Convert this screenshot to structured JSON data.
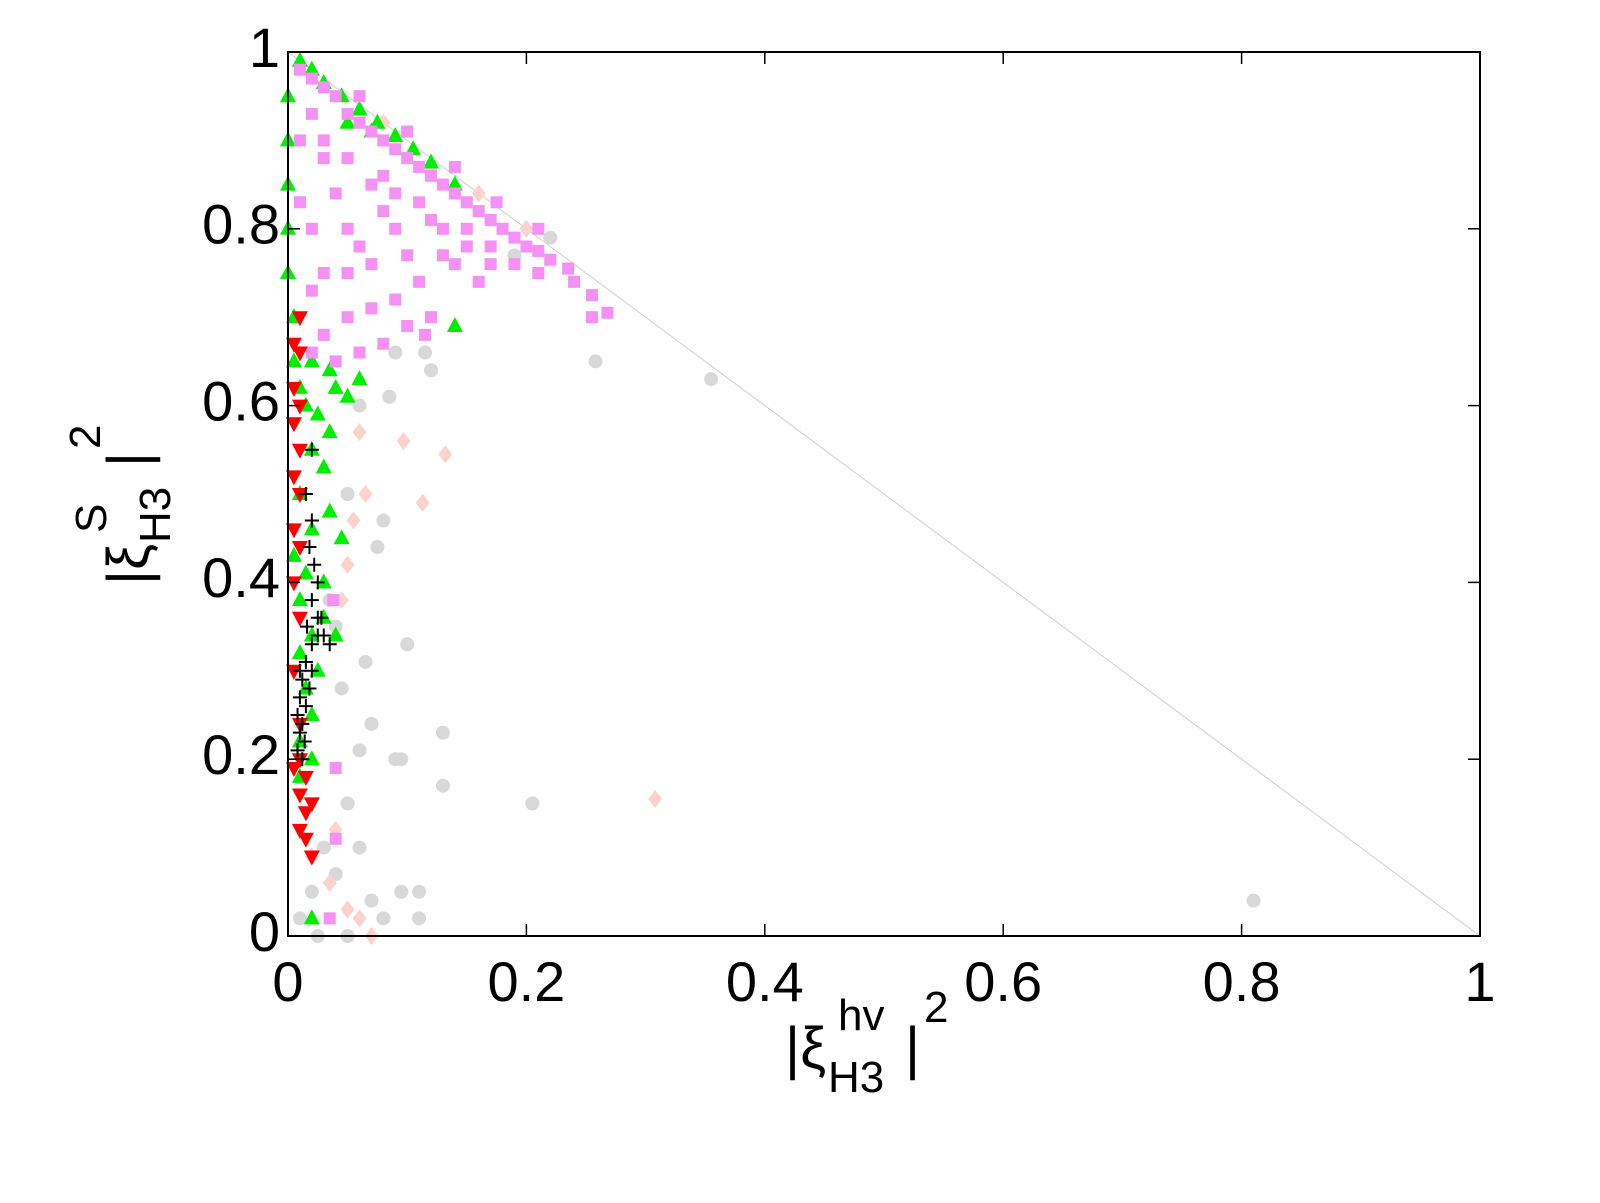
{
  "chart_data": {
    "type": "scatter",
    "xlabel": {
      "open": "|ξ",
      "sup": "hv",
      "sub": "H3",
      "close": "|",
      "power": "2"
    },
    "ylabel": {
      "open": "|ξ",
      "sup": "S",
      "sub": "H3",
      "close": "|",
      "power": "2"
    },
    "xlim": [
      0,
      1
    ],
    "ylim": [
      0,
      1
    ],
    "xticks": [
      0,
      0.2,
      0.4,
      0.6,
      0.8,
      1
    ],
    "yticks": [
      0,
      0.2,
      0.4,
      0.6,
      0.8,
      1
    ],
    "grid": false,
    "series": [
      {
        "color": "#d8d8d8",
        "marker": "circle",
        "x": [
          0.81,
          0.355,
          0.258,
          0.205,
          0.13,
          0.13,
          0.1,
          0.065,
          0.09,
          0.095,
          0.11,
          0.11,
          0.08,
          0.07,
          0.06,
          0.07,
          0.095,
          0.08,
          0.075,
          0.05,
          0.06,
          0.085,
          0.12,
          0.115,
          0.03,
          0.02,
          0.01,
          0.04,
          0.05,
          0.045,
          0.035,
          0.025,
          0.05,
          0.22,
          0.19,
          0.09,
          0.04,
          0.06
        ],
        "values": [
          0.04,
          0.63,
          0.65,
          0.15,
          0.23,
          0.17,
          0.33,
          0.31,
          0.2,
          0.05,
          0.05,
          0.02,
          0.02,
          0.04,
          0.21,
          0.24,
          0.2,
          0.47,
          0.44,
          0.5,
          0.6,
          0.61,
          0.64,
          0.66,
          0.1,
          0.05,
          0.02,
          0.07,
          0.15,
          0.28,
          0.38,
          0.0,
          0.0,
          0.79,
          0.77,
          0.66,
          0.35,
          0.1
        ]
      },
      {
        "color": "#fcd2cc",
        "marker": "diamond",
        "x": [
          0.308,
          0.113,
          0.132,
          0.097,
          0.065,
          0.055,
          0.05,
          0.045,
          0.06,
          0.035,
          0.02,
          0.05,
          0.06,
          0.07,
          0.16,
          0.12,
          0.2,
          0.08,
          0.04
        ],
        "values": [
          0.155,
          0.49,
          0.545,
          0.56,
          0.5,
          0.47,
          0.42,
          0.38,
          0.57,
          0.06,
          0.09,
          0.03,
          0.02,
          0.0,
          0.84,
          0.87,
          0.8,
          0.92,
          0.12
        ]
      },
      {
        "color": "#00ee00",
        "marker": "triangle-up",
        "x": [
          0.01,
          0.02,
          0.03,
          0.045,
          0.06,
          0.075,
          0.09,
          0.105,
          0.12,
          0.14,
          0.07,
          0.05,
          0.0,
          0.0,
          0.0,
          0.0,
          0.0,
          0.005,
          0.005,
          0.01,
          0.015,
          0.025,
          0.035,
          0.02,
          0.03,
          0.01,
          0.035,
          0.02,
          0.005,
          0.015,
          0.03,
          0.01,
          0.03,
          0.02,
          0.01,
          0.025,
          0.015,
          0.02,
          0.01,
          0.02,
          0.01,
          0.02,
          0.14,
          0.06,
          0.05,
          0.04,
          0.045,
          0.04,
          0.02,
          0.035
        ],
        "values": [
          0.99,
          0.98,
          0.965,
          0.95,
          0.935,
          0.92,
          0.905,
          0.89,
          0.875,
          0.85,
          0.91,
          0.92,
          0.95,
          0.9,
          0.85,
          0.8,
          0.75,
          0.7,
          0.65,
          0.62,
          0.6,
          0.59,
          0.57,
          0.55,
          0.53,
          0.5,
          0.48,
          0.46,
          0.43,
          0.41,
          0.4,
          0.38,
          0.36,
          0.34,
          0.32,
          0.3,
          0.28,
          0.25,
          0.22,
          0.2,
          0.18,
          0.02,
          0.69,
          0.63,
          0.61,
          0.62,
          0.45,
          0.34,
          0.65,
          0.64
        ]
      },
      {
        "color": "#f590f5",
        "marker": "square",
        "x": [
          0.268,
          0.255,
          0.255,
          0.24,
          0.235,
          0.22,
          0.21,
          0.2,
          0.19,
          0.18,
          0.17,
          0.16,
          0.15,
          0.14,
          0.13,
          0.12,
          0.11,
          0.1,
          0.09,
          0.08,
          0.07,
          0.06,
          0.05,
          0.04,
          0.03,
          0.02,
          0.01,
          0.21,
          0.19,
          0.17,
          0.15,
          0.13,
          0.11,
          0.09,
          0.07,
          0.05,
          0.03,
          0.02,
          0.12,
          0.1,
          0.115,
          0.08,
          0.06,
          0.04,
          0.21,
          0.175,
          0.14,
          0.1,
          0.06,
          0.02,
          0.03,
          0.02,
          0.02,
          0.04,
          0.06,
          0.08,
          0.1,
          0.12,
          0.14,
          0.16,
          0.05,
          0.08,
          0.038,
          0.04,
          0.04,
          0.035,
          0.01,
          0.03,
          0.05,
          0.07,
          0.09,
          0.11,
          0.13,
          0.15,
          0.17,
          0.01,
          0.03,
          0.05,
          0.07,
          0.09
        ],
        "values": [
          0.705,
          0.7,
          0.725,
          0.74,
          0.755,
          0.765,
          0.775,
          0.78,
          0.79,
          0.8,
          0.81,
          0.82,
          0.83,
          0.84,
          0.85,
          0.86,
          0.87,
          0.88,
          0.89,
          0.9,
          0.91,
          0.92,
          0.93,
          0.95,
          0.96,
          0.97,
          0.98,
          0.75,
          0.76,
          0.78,
          0.8,
          0.77,
          0.74,
          0.72,
          0.71,
          0.7,
          0.68,
          0.66,
          0.7,
          0.69,
          0.68,
          0.67,
          0.66,
          0.65,
          0.8,
          0.83,
          0.87,
          0.91,
          0.95,
          0.93,
          0.88,
          0.8,
          0.73,
          0.84,
          0.78,
          0.82,
          0.77,
          0.81,
          0.76,
          0.74,
          0.88,
          0.86,
          0.38,
          0.19,
          0.11,
          0.02,
          0.9,
          0.75,
          0.8,
          0.85,
          0.8,
          0.83,
          0.8,
          0.78,
          0.76,
          0.83,
          0.9,
          0.75,
          0.76,
          0.84
        ]
      },
      {
        "color": "#ff0000",
        "marker": "triangle-down",
        "x": [
          0.01,
          0.005,
          0.01,
          0.005,
          0.01,
          0.005,
          0.01,
          0.005,
          0.01,
          0.005,
          0.01,
          0.005,
          0.01,
          0.005,
          0.01,
          0.01,
          0.015,
          0.01,
          0.015,
          0.01,
          0.02,
          0.02,
          0.015,
          0.005
        ],
        "values": [
          0.7,
          0.67,
          0.66,
          0.62,
          0.6,
          0.58,
          0.55,
          0.52,
          0.5,
          0.46,
          0.44,
          0.4,
          0.36,
          0.3,
          0.24,
          0.2,
          0.18,
          0.16,
          0.14,
          0.12,
          0.15,
          0.09,
          0.11,
          0.19
        ]
      },
      {
        "color": "#000000",
        "marker": "plus",
        "x": [
          0.02,
          0.015,
          0.02,
          0.018,
          0.022,
          0.025,
          0.02,
          0.028,
          0.025,
          0.02,
          0.015,
          0.02,
          0.012,
          0.018,
          0.01,
          0.015,
          0.008,
          0.012,
          0.01,
          0.014,
          0.008,
          0.012,
          0.03,
          0.035,
          0.025,
          0.01,
          0.016
        ],
        "values": [
          0.55,
          0.5,
          0.47,
          0.44,
          0.42,
          0.4,
          0.38,
          0.36,
          0.34,
          0.33,
          0.31,
          0.3,
          0.29,
          0.28,
          0.27,
          0.26,
          0.25,
          0.24,
          0.23,
          0.22,
          0.21,
          0.2,
          0.34,
          0.33,
          0.36,
          0.3,
          0.35
        ]
      }
    ]
  }
}
